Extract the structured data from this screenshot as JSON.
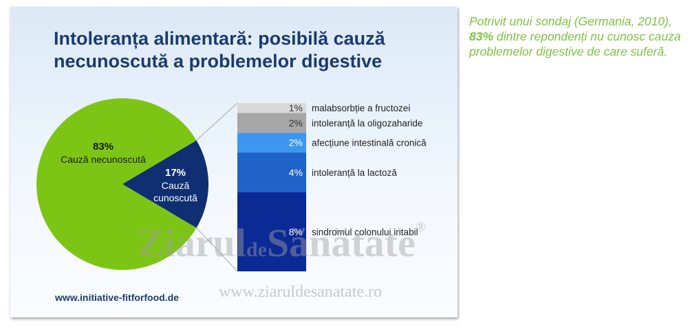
{
  "chart_data": {
    "type": "pie",
    "title_lines": [
      "Intoleranța alimentară: posibilă cauză",
      "necunoscută a problemelor digestive"
    ],
    "categories": [
      "Cauză necunoscută",
      "Cauză cunoscută"
    ],
    "values": [
      83,
      17
    ],
    "value_labels": [
      "83%",
      "17%"
    ],
    "colors": [
      "#7dc514",
      "#0f2f72"
    ],
    "breakdown": {
      "type": "bar",
      "categories": [
        "malabsorbție a fructozei",
        "intoleranță la oligozaharide",
        "afecțiune intestinală cronică",
        "intoleranță la lactoză",
        "sindromul colonului iritabil"
      ],
      "values": [
        1,
        2,
        2,
        4,
        8
      ],
      "value_labels": [
        "1%",
        "2%",
        "2%",
        "4%",
        "8%"
      ],
      "colors": [
        "#d9d9d9",
        "#a6a6a6",
        "#3d97f0",
        "#1f62c8",
        "#0b2a96"
      ]
    },
    "source": "www.initiative-fitforfood.de"
  },
  "side_note": {
    "before": "Potrivit unui sondaj (Germania, 2010), ",
    "highlight": "83%",
    "after": " dintre repondenți nu cunosc cauza problemelor digestive de care suferă."
  },
  "watermark": {
    "name1": "Ziarul",
    "name2": "de",
    "name3": "Sănătate",
    "mark": "®",
    "url": "www.ziaruldesanatate.ro"
  }
}
